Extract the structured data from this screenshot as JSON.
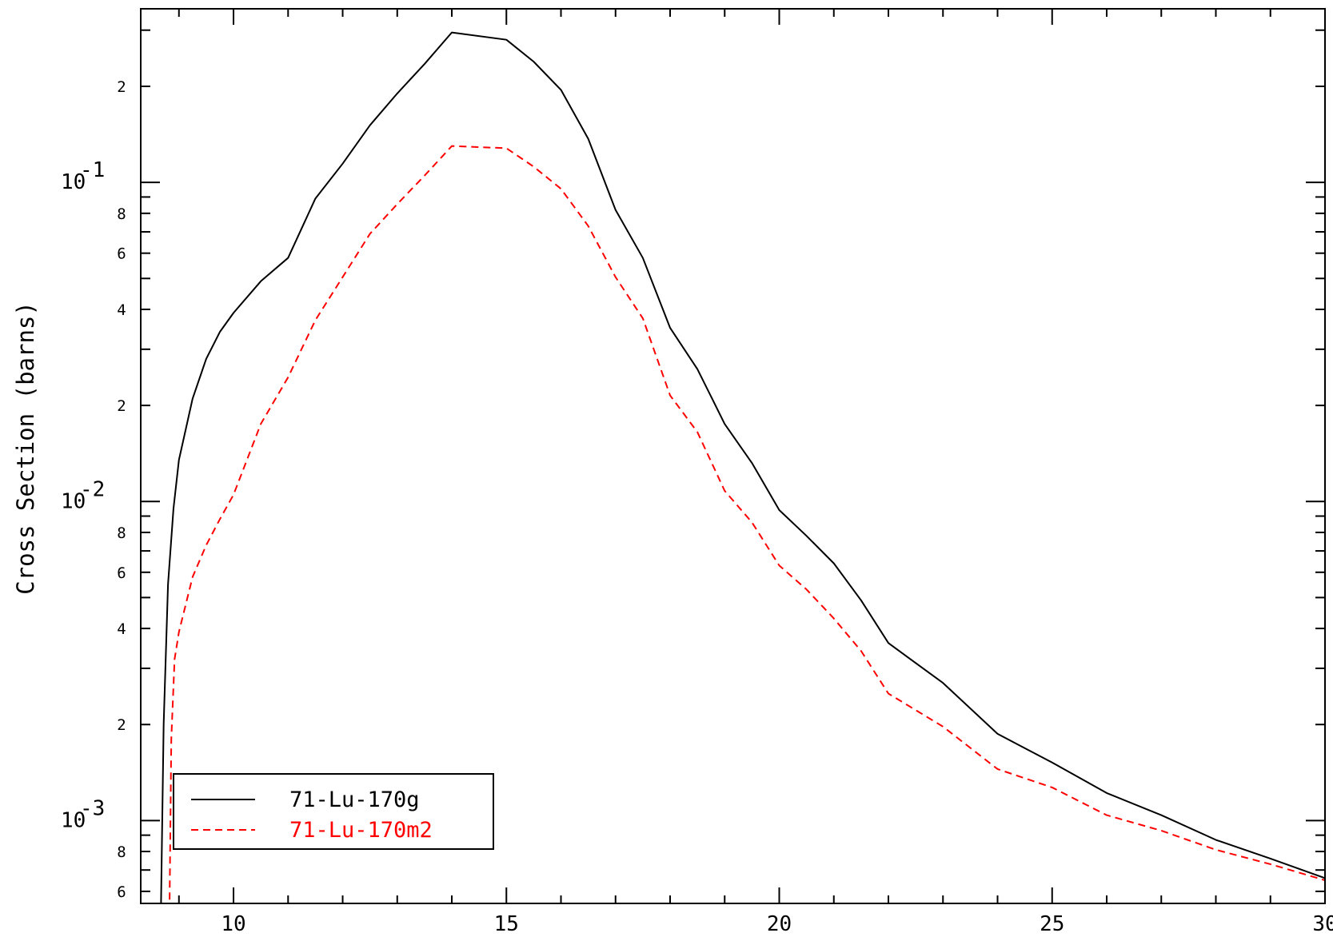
{
  "chart_data": {
    "type": "line",
    "title": "",
    "xlabel": "",
    "ylabel": "Cross Section (barns)",
    "xlim": [
      8.3,
      30.0
    ],
    "ylim": [
      0.00055,
      0.35
    ],
    "y_scale": "log",
    "x_ticks": [
      10,
      15,
      20,
      25,
      30
    ],
    "x_tick_labels": [
      "10",
      "15",
      "20",
      "25",
      "30"
    ],
    "y_major_ticks": [
      0.001,
      0.01,
      0.1
    ],
    "y_major_labels": [
      {
        "base": "10",
        "exp": "-3"
      },
      {
        "base": "10",
        "exp": "-2"
      },
      {
        "base": "10",
        "exp": "-1"
      }
    ],
    "y_minor_labeled": [
      {
        "value": 0.0006,
        "label": "6"
      },
      {
        "value": 0.0008,
        "label": "8"
      },
      {
        "value": 0.002,
        "label": "2"
      },
      {
        "value": 0.004,
        "label": "4"
      },
      {
        "value": 0.006,
        "label": "6"
      },
      {
        "value": 0.008,
        "label": "8"
      },
      {
        "value": 0.02,
        "label": "2"
      },
      {
        "value": 0.04,
        "label": "4"
      },
      {
        "value": 0.06,
        "label": "6"
      },
      {
        "value": 0.08,
        "label": "8"
      },
      {
        "value": 0.2,
        "label": "2"
      }
    ],
    "legend": {
      "placement": "bottom-left"
    },
    "series": [
      {
        "name": "71-Lu-170g",
        "color": "#000000",
        "dash": "solid",
        "x": [
          8.66,
          8.72,
          8.8,
          8.9,
          9.0,
          9.25,
          9.5,
          9.75,
          10,
          10.5,
          11,
          11.5,
          12,
          12.5,
          13,
          13.5,
          14,
          15,
          15.5,
          16,
          16.5,
          17,
          17.5,
          18,
          18.5,
          19,
          19.5,
          20,
          20.5,
          21,
          21.5,
          22,
          23,
          24,
          25,
          26,
          27,
          28,
          29,
          30,
          30.0
        ],
        "y": [
          0.0004,
          0.002,
          0.0055,
          0.0095,
          0.0135,
          0.021,
          0.028,
          0.034,
          0.039,
          0.049,
          0.058,
          0.089,
          0.1145,
          0.151,
          0.19,
          0.235,
          0.295,
          0.28,
          0.239,
          0.195,
          0.137,
          0.082,
          0.058,
          0.035,
          0.026,
          0.0175,
          0.0132,
          0.0094,
          0.0078,
          0.0064,
          0.0049,
          0.0036,
          0.0027,
          0.00187,
          0.00152,
          0.00122,
          0.00104,
          0.00087,
          0.00076,
          0.00066,
          0.0005
        ]
      },
      {
        "name": "71-Lu-170m2",
        "color": "#ff0000",
        "dash": "dashed",
        "x": [
          8.82,
          8.86,
          8.92,
          9.0,
          9.25,
          9.5,
          9.75,
          10,
          10.5,
          11,
          11.5,
          12,
          12.5,
          13,
          13.5,
          14,
          15,
          15.5,
          16,
          16.5,
          17,
          17.5,
          18,
          18.5,
          19,
          19.5,
          20,
          20.5,
          21,
          21.5,
          22,
          23,
          24,
          25,
          26,
          27,
          28,
          29,
          30,
          30.0
        ],
        "y": [
          0.0004,
          0.0018,
          0.0032,
          0.0039,
          0.0058,
          0.0073,
          0.0088,
          0.0105,
          0.0175,
          0.0245,
          0.037,
          0.0505,
          0.069,
          0.0855,
          0.105,
          0.13,
          0.128,
          0.112,
          0.0955,
          0.073,
          0.0505,
          0.0375,
          0.0215,
          0.0165,
          0.0108,
          0.0086,
          0.0063,
          0.0053,
          0.0043,
          0.0034,
          0.0025,
          0.00197,
          0.00145,
          0.00127,
          0.00104,
          0.00093,
          0.00081,
          0.00073,
          0.00065,
          0.0005
        ]
      }
    ]
  }
}
